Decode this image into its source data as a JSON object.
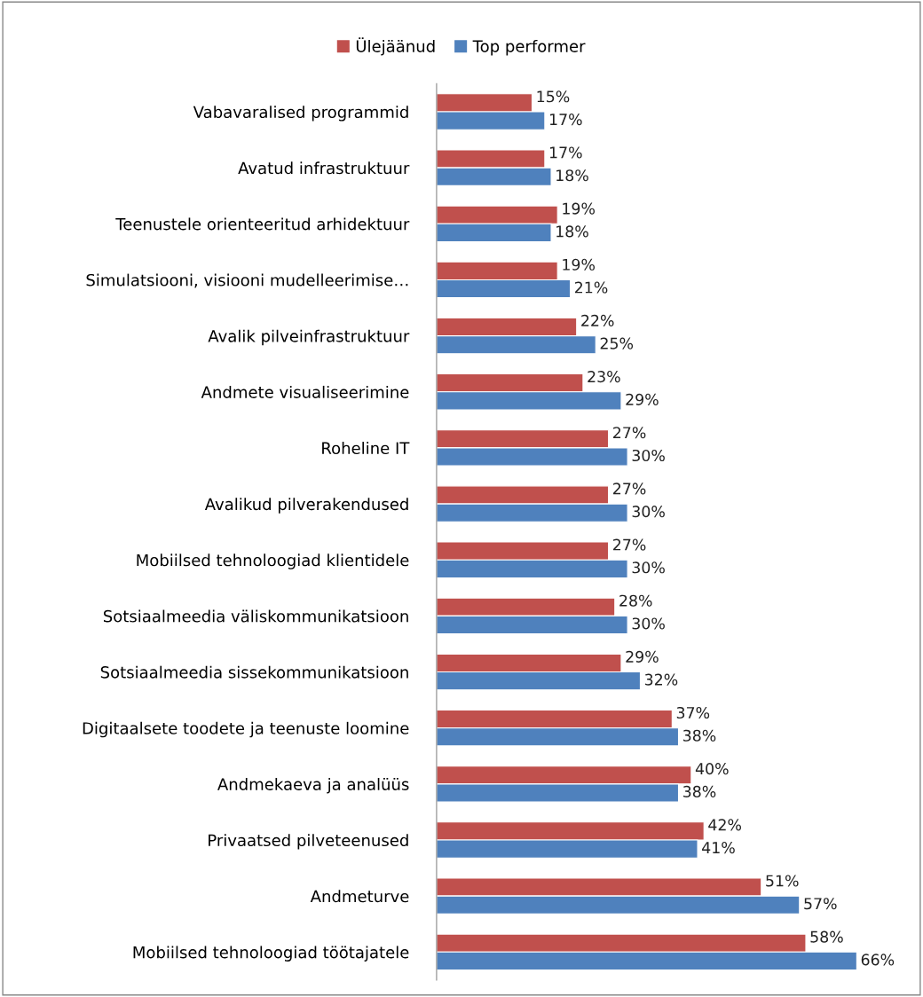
{
  "chart_data": {
    "type": "bar",
    "orientation": "horizontal",
    "legend": "top",
    "tick_labels": "y",
    "grid": false,
    "categories": [
      "Vabavaralised programmid",
      "Avatud infrastruktuur",
      "Teenustele orienteeritud arhidektuur",
      "Simulatsiooni, visiooni mudelleerimise…",
      "Avalik pilveinfrastruktuur",
      "Andmete visualiseerimine",
      "Roheline IT",
      "Avalikud pilverakendused",
      "Mobiilsed tehnoloogiad klientidele",
      "Sotsiaalmeedia väliskommunikatsioon",
      "Sotsiaalmeedia sissekommunikatsioon",
      "Digitaalsete toodete ja teenuste loomine",
      "Andmekaeva ja analüüs",
      "Privaatsed pilveteenused",
      "Andmeturve",
      "Mobiilsed tehnoloogiad töötajatele"
    ],
    "series": [
      {
        "name": "Ülejäänud",
        "color": "#c0504d",
        "values": [
          15,
          17,
          19,
          19,
          22,
          23,
          27,
          27,
          27,
          28,
          29,
          37,
          40,
          42,
          51,
          58
        ],
        "value_labels": [
          "15%",
          "17%",
          "19%",
          "19%",
          "22%",
          "23%",
          "27%",
          "27%",
          "27%",
          "28%",
          "29%",
          "37%",
          "40%",
          "42%",
          "51%",
          "58%"
        ]
      },
      {
        "name": "Top performer",
        "color": "#4f81bd",
        "values": [
          17,
          18,
          18,
          21,
          25,
          29,
          30,
          30,
          30,
          30,
          32,
          38,
          38,
          41,
          57,
          66
        ],
        "value_labels": [
          "17%",
          "18%",
          "18%",
          "21%",
          "25%",
          "29%",
          "30%",
          "30%",
          "30%",
          "30%",
          "32%",
          "38%",
          "38%",
          "41%",
          "57%",
          "66%"
        ]
      }
    ]
  }
}
